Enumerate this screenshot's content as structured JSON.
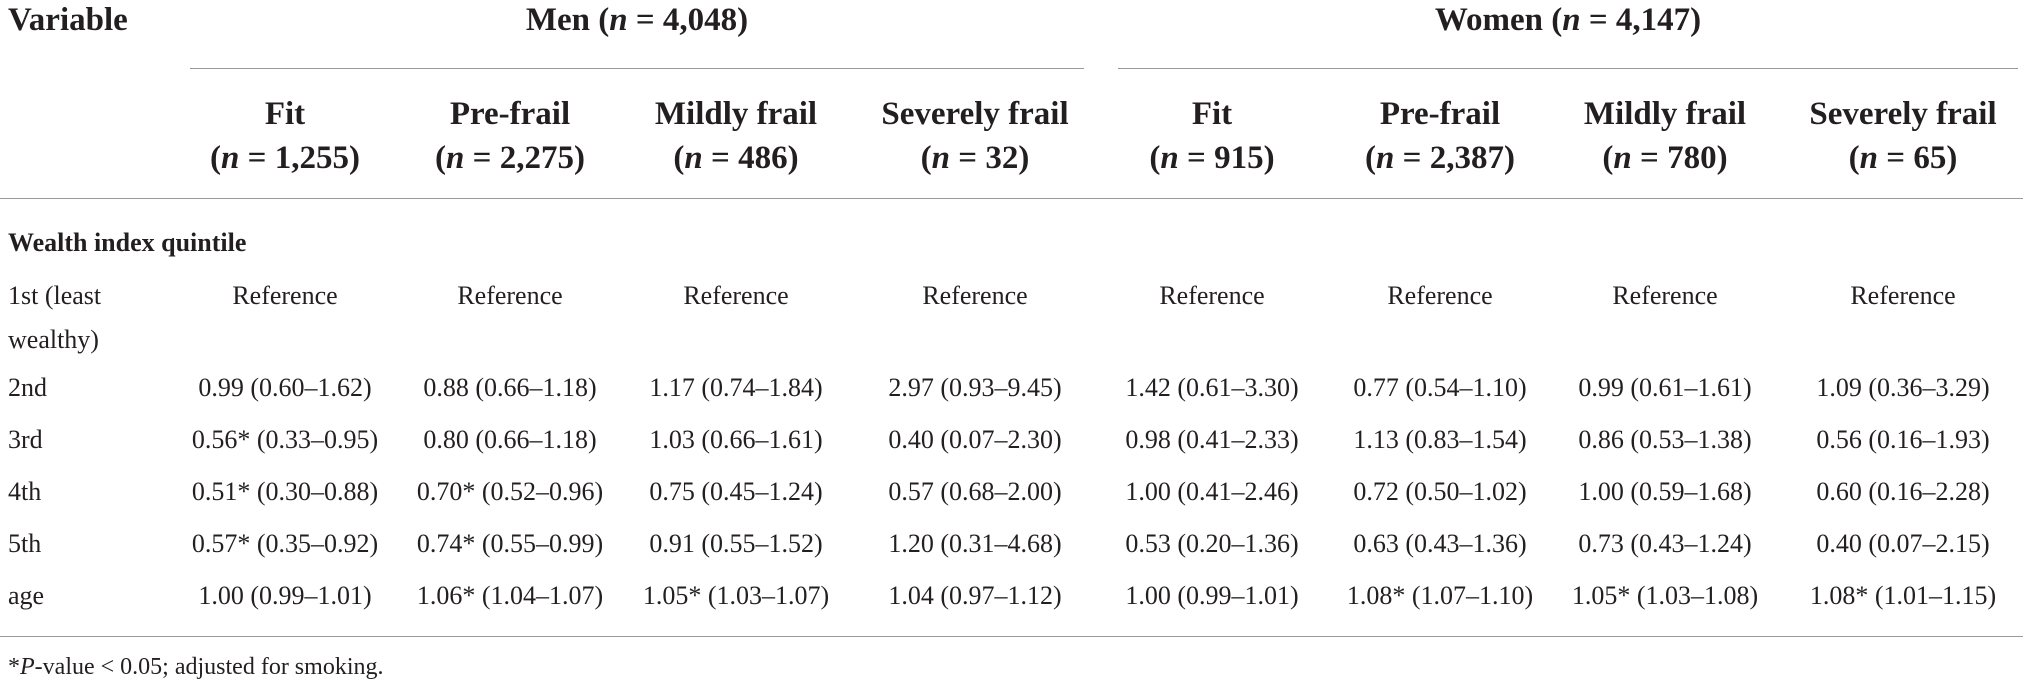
{
  "header": {
    "variable": "Variable",
    "groups": [
      {
        "name": "Men",
        "n_label": "n",
        "n_value": "= 4,048"
      },
      {
        "name": "Women",
        "n_label": "n",
        "n_value": "= 4,147"
      }
    ]
  },
  "columns": [
    {
      "title": "Fit",
      "n_label": "n",
      "n_value": "= 1,255"
    },
    {
      "title": "Pre-frail",
      "n_label": "n",
      "n_value": "= 2,275"
    },
    {
      "title": "Mildly frail",
      "n_label": "n",
      "n_value": "= 486"
    },
    {
      "title": "Severely frail",
      "n_label": "n",
      "n_value": "= 32"
    },
    {
      "title": "Fit",
      "n_label": "n",
      "n_value": "= 915"
    },
    {
      "title": "Pre-frail",
      "n_label": "n",
      "n_value": "= 2,387"
    },
    {
      "title": "Mildly frail",
      "n_label": "n",
      "n_value": "= 780"
    },
    {
      "title": "Severely frail",
      "n_label": "n",
      "n_value": "= 65"
    }
  ],
  "section_title": "Wealth index quintile",
  "rows": [
    {
      "label": "1st (least\nwealthy)",
      "cells": [
        "Reference",
        "Reference",
        "Reference",
        "Reference",
        "Reference",
        "Reference",
        "Reference",
        "Reference"
      ]
    },
    {
      "label": "2nd",
      "cells": [
        "0.99 (0.60–1.62)",
        "0.88 (0.66–1.18)",
        "1.17 (0.74–1.84)",
        "2.97 (0.93–9.45)",
        "1.42 (0.61–3.30)",
        "0.77 (0.54–1.10)",
        "0.99 (0.61–1.61)",
        "1.09 (0.36–3.29)"
      ]
    },
    {
      "label": "3rd",
      "cells": [
        "0.56* (0.33–0.95)",
        "0.80 (0.66–1.18)",
        "1.03 (0.66–1.61)",
        "0.40 (0.07–2.30)",
        "0.98 (0.41–2.33)",
        "1.13 (0.83–1.54)",
        "0.86 (0.53–1.38)",
        "0.56 (0.16–1.93)"
      ]
    },
    {
      "label": "4th",
      "cells": [
        "0.51* (0.30–0.88)",
        "0.70* (0.52–0.96)",
        "0.75 (0.45–1.24)",
        "0.57 (0.68–2.00)",
        "1.00 (0.41–2.46)",
        "0.72 (0.50–1.02)",
        "1.00 (0.59–1.68)",
        "0.60 (0.16–2.28)"
      ]
    },
    {
      "label": "5th",
      "cells": [
        "0.57* (0.35–0.92)",
        "0.74* (0.55–0.99)",
        "0.91 (0.55–1.52)",
        "1.20 (0.31–4.68)",
        "0.53 (0.20–1.36)",
        "0.63 (0.43–1.36)",
        "0.73 (0.43–1.24)",
        "0.40 (0.07–2.15)"
      ]
    },
    {
      "label": "age",
      "cells": [
        "1.00 (0.99–1.01)",
        "1.06* (1.04–1.07)",
        "1.05* (1.03–1.07)",
        "1.04 (0.97–1.12)",
        "1.00 (0.99–1.01)",
        "1.08* (1.07–1.10)",
        "1.05* (1.03–1.08)",
        "1.08* (1.01–1.15)"
      ]
    }
  ],
  "footnote": {
    "star": "*",
    "p": "P",
    "text": "-value < 0.05; adjusted for smoking."
  }
}
